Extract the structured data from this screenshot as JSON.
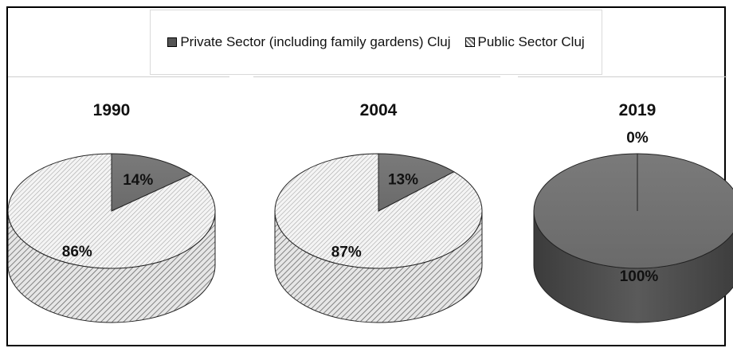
{
  "legend": {
    "private_label": "Private Sector (including family gardens) Cluj",
    "public_label": "Public  Sector Cluj"
  },
  "colors": {
    "private": "#6e6e6e",
    "private_side": "#4a4a4a",
    "public_hatch": "#8c8c8c",
    "public_bg": "#f2f2f2"
  },
  "chart_data": [
    {
      "type": "pie",
      "title": "1990",
      "categories": [
        "Private Sector (including family gardens) Cluj",
        "Public  Sector Cluj"
      ],
      "values": [
        14,
        86
      ],
      "labels": [
        "14%",
        "86%"
      ]
    },
    {
      "type": "pie",
      "title": "2004",
      "categories": [
        "Private Sector (including family gardens) Cluj",
        "Public  Sector Cluj"
      ],
      "values": [
        13,
        87
      ],
      "labels": [
        "13%",
        "87%"
      ]
    },
    {
      "type": "pie",
      "title": "2019",
      "categories": [
        "Private Sector (including family gardens) Cluj",
        "Public  Sector Cluj"
      ],
      "values": [
        100,
        0
      ],
      "labels": [
        "100%",
        "0%"
      ]
    }
  ]
}
